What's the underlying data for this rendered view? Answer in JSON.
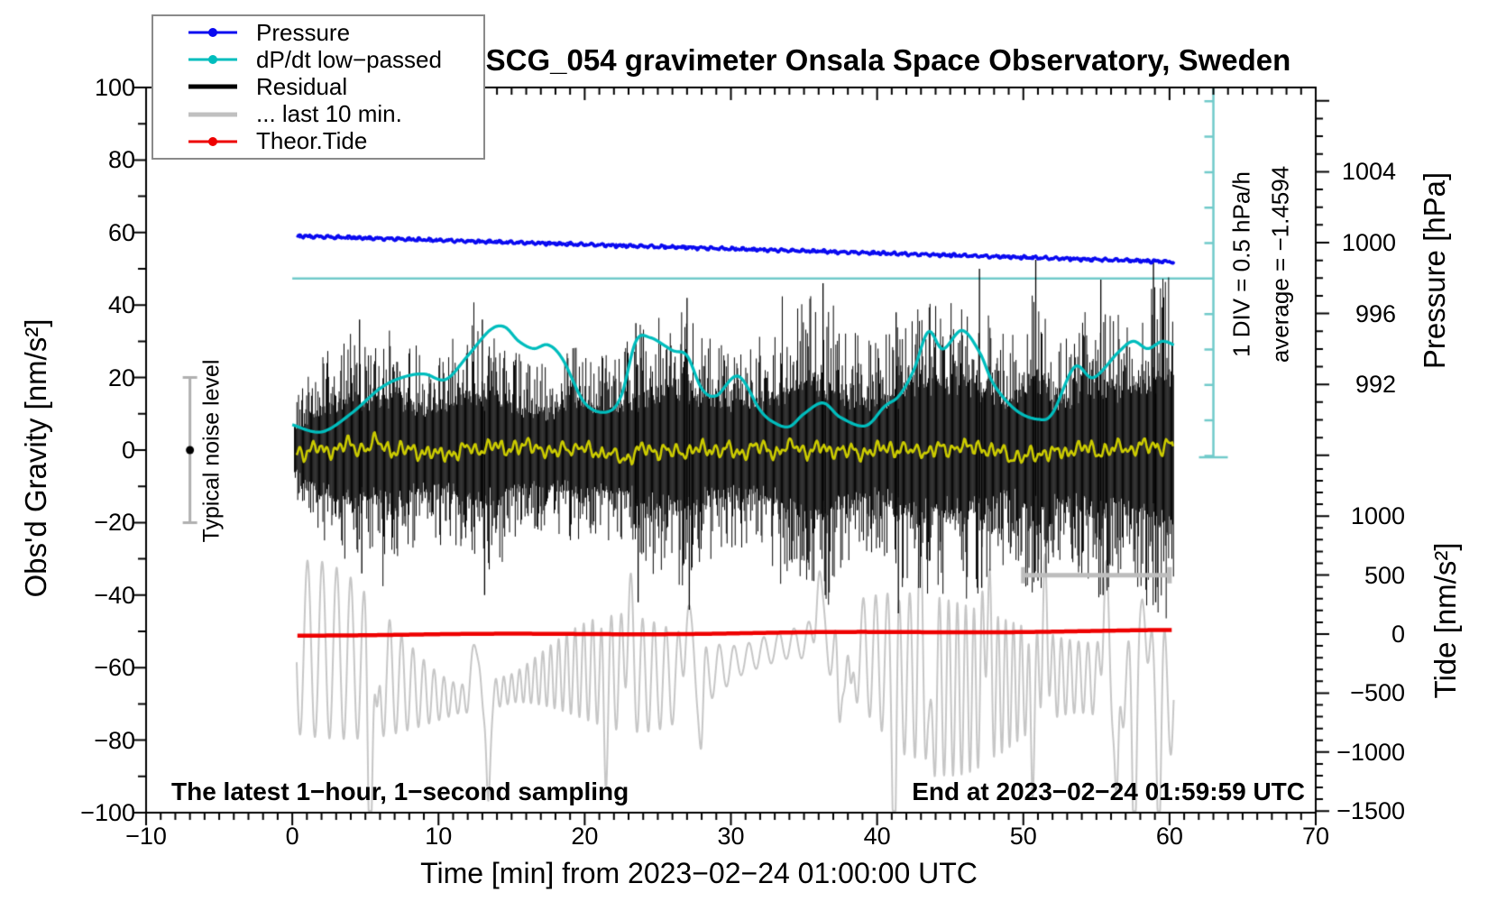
{
  "title": "SCG_054 gravimeter Onsala Space Observatory, Sweden",
  "legend": {
    "entries": [
      {
        "id": "pressure",
        "label": "Pressure",
        "color": "#0a0af0",
        "style": "line-dot"
      },
      {
        "id": "dpdt",
        "label": "dP/dt low−passed",
        "color": "#00bdbd",
        "style": "line-dot"
      },
      {
        "id": "residual",
        "label": "Residual",
        "color": "#000000",
        "style": "thick-line"
      },
      {
        "id": "last10",
        "label": "... last 10 min.",
        "color": "#c0c0c0",
        "style": "thick-line"
      },
      {
        "id": "tide",
        "label": "Theor.Tide",
        "color": "#ee0000",
        "style": "line-dot"
      }
    ]
  },
  "axes": {
    "time": {
      "label": "Time [min] from 2023−02−24 01:00:00 UTC",
      "range": [
        -10,
        70
      ],
      "minor_step": 1,
      "major_ticks": [
        {
          "v": -10,
          "label": "−10"
        },
        {
          "v": 0,
          "label": "0"
        },
        {
          "v": 10,
          "label": "10"
        },
        {
          "v": 20,
          "label": "20"
        },
        {
          "v": 30,
          "label": "30"
        },
        {
          "v": 40,
          "label": "40"
        },
        {
          "v": 50,
          "label": "50"
        },
        {
          "v": 60,
          "label": "60"
        },
        {
          "v": 70,
          "label": "70"
        }
      ]
    },
    "gravity": {
      "label": "Obs'd Gravity [nm/s²]",
      "range": [
        -100,
        100
      ],
      "minor_step": 10,
      "major_ticks": [
        {
          "v": 100,
          "label": "100"
        },
        {
          "v": 80,
          "label": "80"
        },
        {
          "v": 60,
          "label": "60"
        },
        {
          "v": 40,
          "label": "40"
        },
        {
          "v": 20,
          "label": "20"
        },
        {
          "v": 0,
          "label": "0"
        },
        {
          "v": -20,
          "label": "−20"
        },
        {
          "v": -40,
          "label": "−40"
        },
        {
          "v": -60,
          "label": "−60"
        },
        {
          "v": -80,
          "label": "−80"
        },
        {
          "v": -100,
          "label": "−100"
        }
      ]
    },
    "pressure": {
      "label": "Pressure [hPa]",
      "minor_step": 1,
      "minor_range": [
        988,
        1008
      ],
      "major_ticks": [
        {
          "v": 1004,
          "label": "1004"
        },
        {
          "v": 1000,
          "label": "1000"
        },
        {
          "v": 996,
          "label": "996"
        },
        {
          "v": 992,
          "label": "992"
        }
      ]
    },
    "tide": {
      "label": "Tide [nm/s²]",
      "minor_step": 100,
      "minor_range": [
        -1500,
        1450
      ],
      "major_ticks": [
        {
          "v": 1000,
          "label": "1000"
        },
        {
          "v": 500,
          "label": "500"
        },
        {
          "v": 0,
          "label": "0"
        },
        {
          "v": -500,
          "label": "−500"
        },
        {
          "v": -1000,
          "label": "−1000"
        },
        {
          "v": -1500,
          "label": "−1500"
        }
      ]
    }
  },
  "annotations": {
    "sampling_note": "The latest 1−hour, 1−second sampling",
    "end_note": "End at 2023−02−24 01:59:59 UTC",
    "div_note": "1 DIV = 0.5 hPa/h",
    "average_note": "average = −1.4594",
    "noise_label": "Typical noise level"
  },
  "chart_data": {
    "type": "line",
    "title": "SCG_054 gravimeter Onsala Space Observatory, Sweden",
    "x": {
      "unit": "min",
      "range": [
        -10,
        70
      ],
      "grid": false
    },
    "y_left": {
      "unit": "nm/s²",
      "range": [
        -100,
        100
      ]
    },
    "pressure_axis": {
      "ticks": [
        992,
        996,
        1000,
        1004
      ],
      "gravity_of_1000hPa": 57.2,
      "gravity_units_per_hPa": 4.888
    },
    "tide_axis": {
      "ticks": [
        1000,
        500,
        0,
        -500,
        -1000,
        -1500
      ],
      "gravity_of_zero": -50.75,
      "gravity_units_per_500": 16.27
    },
    "legend_position": "top-left",
    "series": [
      {
        "id": "pressure",
        "name": "Pressure",
        "axis": "pressure",
        "color": "#0a0af0",
        "average_dpdt_hpa_per_h": -1.4594,
        "noise_hpa": 0.05,
        "points": [
          [
            0,
            1000.38
          ],
          [
            30,
            999.65
          ],
          [
            60.3,
            998.92
          ]
        ]
      },
      {
        "id": "dpdt",
        "name": "dP/dt low−passed",
        "axis": "gravity-equivalent",
        "color": "#00bdbd",
        "zero_gravity": 47.3,
        "gravity_units_per_div": 9.78,
        "hpa_per_h_per_div": 0.5,
        "points": [
          [
            0,
            7
          ],
          [
            2,
            5
          ],
          [
            4,
            10
          ],
          [
            6,
            17
          ],
          [
            7.5,
            20
          ],
          [
            9,
            21
          ],
          [
            10.5,
            19.5
          ],
          [
            12,
            26
          ],
          [
            13.5,
            33
          ],
          [
            14.5,
            34
          ],
          [
            15.5,
            30
          ],
          [
            16.5,
            28
          ],
          [
            17.5,
            29
          ],
          [
            18.5,
            25
          ],
          [
            20,
            13
          ],
          [
            21.5,
            10.5
          ],
          [
            22.5,
            15
          ],
          [
            23.5,
            30
          ],
          [
            24.5,
            31
          ],
          [
            26,
            27.5
          ],
          [
            27,
            26
          ],
          [
            28,
            17
          ],
          [
            29,
            15
          ],
          [
            30.5,
            20.4
          ],
          [
            32,
            11
          ],
          [
            33,
            7.5
          ],
          [
            34,
            6.5
          ],
          [
            35,
            10
          ],
          [
            36.3,
            13
          ],
          [
            37.5,
            9
          ],
          [
            39.2,
            6.7
          ],
          [
            40.5,
            12
          ],
          [
            41.5,
            15
          ],
          [
            42.5,
            22
          ],
          [
            43.5,
            32.6
          ],
          [
            44.5,
            27.9
          ],
          [
            45.8,
            33
          ],
          [
            47,
            27
          ],
          [
            48,
            18
          ],
          [
            49.5,
            11
          ],
          [
            51,
            8.5
          ],
          [
            52,
            10.2
          ],
          [
            53.5,
            22.9
          ],
          [
            54.8,
            20
          ],
          [
            56.5,
            27
          ],
          [
            57.5,
            30
          ],
          [
            58.5,
            28
          ],
          [
            59.5,
            30
          ],
          [
            60.3,
            29
          ]
        ]
      },
      {
        "id": "residual",
        "name": "Residual",
        "axis": "gravity",
        "color": "#000000",
        "seed": 7,
        "sampling": "1 s",
        "t_range": [
          0.15,
          60.3
        ],
        "amplitude_profile": [
          [
            0,
            14
          ],
          [
            2,
            26
          ],
          [
            4,
            34
          ],
          [
            5,
            30
          ],
          [
            7,
            34
          ],
          [
            9,
            26
          ],
          [
            11,
            30
          ],
          [
            12.5,
            36
          ],
          [
            14,
            34
          ],
          [
            16,
            24
          ],
          [
            18,
            26
          ],
          [
            20,
            30
          ],
          [
            22,
            26
          ],
          [
            23.5,
            34
          ],
          [
            25,
            38
          ],
          [
            27,
            40
          ],
          [
            29,
            30
          ],
          [
            31,
            30
          ],
          [
            33,
            34
          ],
          [
            34.5,
            40
          ],
          [
            36,
            46
          ],
          [
            38,
            34
          ],
          [
            40,
            30
          ],
          [
            41.5,
            38
          ],
          [
            43,
            44
          ],
          [
            44.5,
            42
          ],
          [
            46,
            44
          ],
          [
            47.5,
            40
          ],
          [
            49,
            30
          ],
          [
            50.8,
            50
          ],
          [
            52,
            32
          ],
          [
            53.5,
            34
          ],
          [
            55,
            44
          ],
          [
            56.5,
            38
          ],
          [
            58,
            44
          ],
          [
            59.5,
            50
          ],
          [
            60.3,
            46
          ]
        ],
        "spikes": [
          [
            4.6,
            36,
            -34
          ],
          [
            13,
            36,
            -40
          ],
          [
            23.5,
            35,
            -42
          ],
          [
            27,
            42,
            -44
          ],
          [
            36.3,
            46,
            -40
          ],
          [
            41.3,
            38,
            -45
          ],
          [
            47,
            50,
            -38
          ],
          [
            50.85,
            52.5,
            -36
          ],
          [
            55.3,
            47,
            -40
          ],
          [
            58.9,
            52,
            -42
          ]
        ]
      },
      {
        "id": "residual_low",
        "name": "Residual low−passed",
        "axis": "gravity",
        "color": "#cbcb00",
        "center": 0,
        "amplitude": 2.6,
        "seed": 3,
        "t_range": [
          0.3,
          60.3
        ]
      },
      {
        "id": "last10",
        "name": "... last 10 min.",
        "axis": "gravity",
        "color": "#c6c6c6",
        "center": -61,
        "seed": 11,
        "t_range": [
          0.3,
          60.3
        ],
        "interval_marker": {
          "t_start": 50,
          "t_end": 60,
          "gravity": -34.5
        },
        "troughs": [
          [
            5.3,
            -38
          ],
          [
            5.8,
            -28
          ],
          [
            13.4,
            -33
          ],
          [
            21.4,
            -20
          ],
          [
            28,
            -18
          ],
          [
            37.4,
            -26
          ],
          [
            38.2,
            -22
          ],
          [
            41.2,
            -38
          ],
          [
            43.6,
            -30
          ],
          [
            50.6,
            -20
          ],
          [
            56.4,
            -40
          ],
          [
            57.6,
            -36
          ],
          [
            59.3,
            -28
          ]
        ],
        "peaks": [
          [
            12.5,
            18
          ],
          [
            23,
            20
          ],
          [
            27,
            22
          ],
          [
            36,
            20
          ],
          [
            43,
            22
          ],
          [
            47.5,
            25
          ],
          [
            51.5,
            22
          ],
          [
            55.6,
            28
          ],
          [
            58.3,
            30
          ]
        ]
      },
      {
        "id": "tide",
        "name": "Theor.Tide",
        "axis": "tide",
        "color": "#ee0000",
        "points": [
          [
            0,
            -8
          ],
          [
            15,
            -2
          ],
          [
            30,
            7
          ],
          [
            45,
            18
          ],
          [
            60.2,
            30
          ]
        ]
      }
    ],
    "markers": {
      "noise_level": {
        "t": -7,
        "gravity": 0,
        "error": 20,
        "label": "Typical noise level",
        "bar_color": "#b0b0b0",
        "dot_color": "#000000"
      },
      "dpdt_ruler": {
        "t": 63,
        "gravity_top": 100,
        "gravity_bottom": -2,
        "zero_gravity": 47.3,
        "gravity_units_per_div": 9.78,
        "ticks_each_side": 5,
        "color": "#70caca",
        "zero_line_t": [
          0,
          63
        ]
      }
    }
  }
}
